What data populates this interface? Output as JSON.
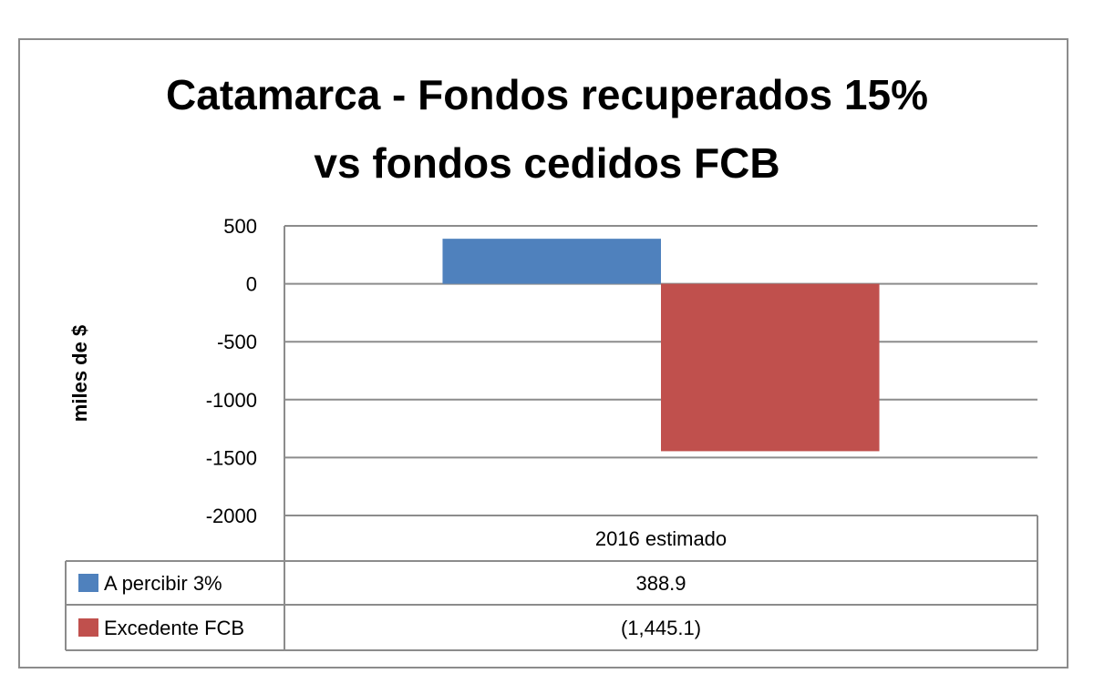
{
  "chart_data": {
    "type": "bar",
    "title_lines": [
      "Catamarca - Fondos recuperados 15%",
      "vs fondos cedidos FCB"
    ],
    "xlabel": "",
    "ylabel": "miles de $",
    "categories": [
      "2016 estimado"
    ],
    "ylim": [
      -2000,
      500
    ],
    "yticks": [
      500,
      0,
      -500,
      -1000,
      -1500,
      -2000
    ],
    "grid": true,
    "legend_placement": "data-table",
    "series": [
      {
        "name": "A percibir 3%",
        "values": [
          388.9
        ],
        "table_label": "388.9",
        "color": "#4f81bd"
      },
      {
        "name": "Excedente FCB",
        "values": [
          -1445.1
        ],
        "table_label": "(1,445.1)",
        "color": "#c0504d"
      }
    ]
  }
}
